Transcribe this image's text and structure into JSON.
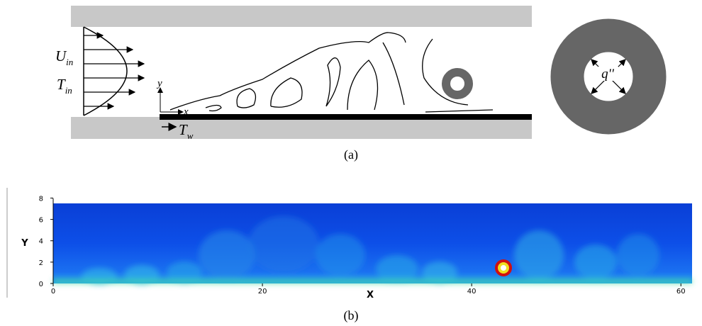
{
  "schematic": {
    "inlet_velocity": {
      "symbol": "U",
      "subscript": "in"
    },
    "inlet_temperature": {
      "symbol": "T",
      "subscript": "in"
    },
    "axis_y": "y",
    "axis_x": "x",
    "wall_temperature": {
      "symbol": "T",
      "subscript": "w"
    },
    "heat_flux": "q''",
    "caption": "(a)"
  },
  "plot": {
    "x_label": "X",
    "y_label": "Y",
    "xlim": [
      0,
      61
    ],
    "ylim": [
      0,
      8
    ],
    "xticks": [
      0,
      20,
      40,
      60
    ],
    "yticks": [
      0,
      2,
      4,
      6,
      8
    ],
    "caption": "(b)"
  }
}
